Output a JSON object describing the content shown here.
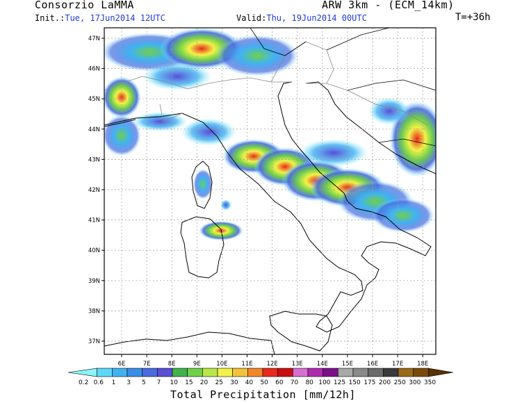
{
  "header": {
    "org": "Consorzio LaMMA",
    "model": "ARW 3km - (ECM_14km)",
    "init_prefix": "Init.:",
    "init_value": "Tue, 17Jun2014 12UTC",
    "valid_prefix": "Valid:",
    "valid_value": "Thu, 19Jun2014 00UTC",
    "lead": "T=+36h"
  },
  "map": {
    "lon_ticks": [
      "6E",
      "7E",
      "8E",
      "9E",
      "10E",
      "11E",
      "12E",
      "13E",
      "14E",
      "15E",
      "16E",
      "17E",
      "18E"
    ],
    "lat_ticks": [
      "47N",
      "46N",
      "45N",
      "44N",
      "43N",
      "42N",
      "41N",
      "40N",
      "39N",
      "38N",
      "37N"
    ]
  },
  "colorbar": {
    "title": "Total Precipitation [mm/12h]",
    "levels": [
      "0.2",
      "0.6",
      "1",
      "3",
      "5",
      "7",
      "10",
      "15",
      "20",
      "25",
      "30",
      "40",
      "50",
      "60",
      "70",
      "80",
      "100",
      "125",
      "150",
      "175",
      "200",
      "250",
      "300",
      "350"
    ],
    "colors": [
      "#8ef4ff",
      "#5fd8f8",
      "#3fb3f2",
      "#3b8ee8",
      "#4a6ae0",
      "#5a4fd6",
      "#3fb34a",
      "#6fd04a",
      "#b8e84a",
      "#f2f24a",
      "#f2c23a",
      "#f2862a",
      "#ea2a1a",
      "#c80e0e",
      "#d86fd0",
      "#b02ab0",
      "#7a0e8a",
      "#a8a8a8",
      "#8a8a8a",
      "#6a6a6a",
      "#3a3a3a",
      "#9a6a1a",
      "#7a4a0a",
      "#5a3000"
    ]
  }
}
